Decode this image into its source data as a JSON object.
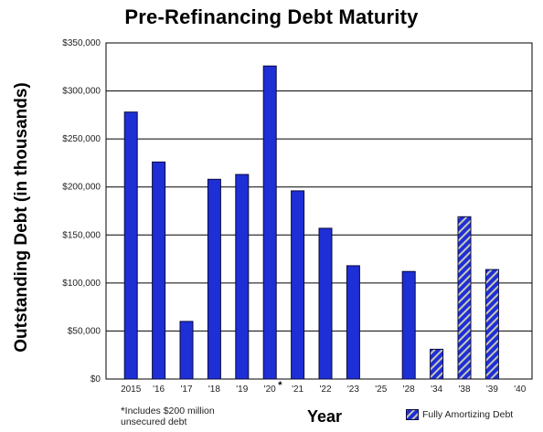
{
  "chart_data": {
    "type": "bar",
    "title": "Pre-Refinancing Debt Maturity",
    "xlabel": "Year",
    "ylabel": "Outstanding Debt (in thousands)",
    "ylim": [
      0,
      350000
    ],
    "y_ticks": [
      0,
      50000,
      100000,
      150000,
      200000,
      250000,
      300000,
      350000
    ],
    "y_tick_labels": [
      "$0",
      "$50,000",
      "$100,000",
      "$150,000",
      "$200,000",
      "$250,000",
      "$300,000",
      "$350,000"
    ],
    "grid": true,
    "categories": [
      "2015",
      "'16",
      "'17",
      "'18",
      "'19",
      "'20",
      "'21",
      "'22",
      "'23",
      "'25",
      "'28",
      "'34",
      "'38",
      "'39",
      "'40"
    ],
    "category_markers": [
      "",
      "",
      "",
      "",
      "",
      "*",
      "",
      "",
      "",
      "",
      "",
      "",
      "",
      "",
      ""
    ],
    "values": [
      278000,
      226000,
      60000,
      208000,
      213000,
      326000,
      196000,
      157000,
      118000,
      0,
      112000,
      31000,
      169000,
      114000,
      0
    ],
    "fully_amortizing": [
      false,
      false,
      false,
      false,
      false,
      false,
      false,
      false,
      false,
      false,
      false,
      true,
      true,
      true,
      false
    ],
    "footnote_marker": "*",
    "footnote_text": "Includes $200 million unsecured debt",
    "legend": [
      {
        "label": "Fully Amortizing Debt",
        "pattern": "hatched"
      }
    ],
    "colors": {
      "bar": "#1e2fd6",
      "bar_outline": "#0a0a3c",
      "hatch_stripe": "#c8c8b4",
      "grid": "#000000"
    }
  }
}
